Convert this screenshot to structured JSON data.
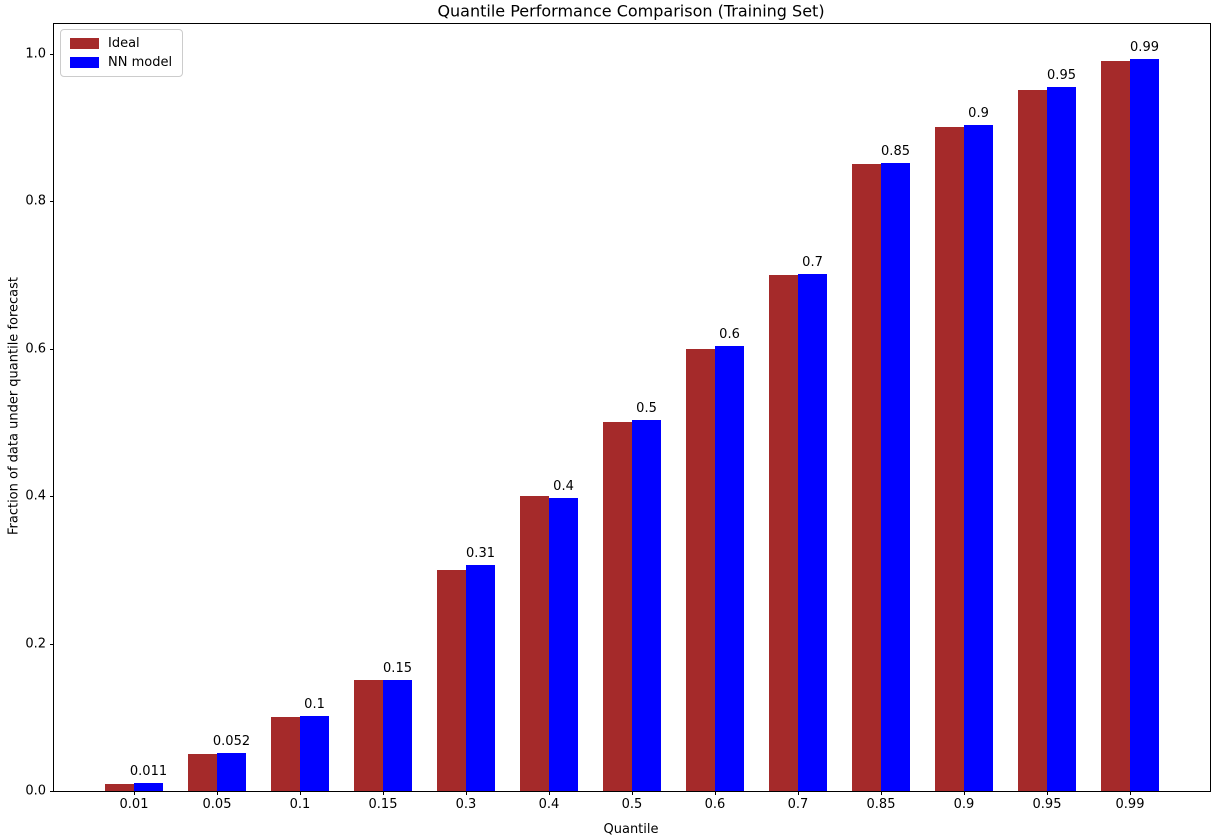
{
  "chart_data": {
    "type": "bar",
    "title": "Quantile Performance Comparison (Training Set)",
    "xlabel": "Quantile",
    "ylabel": "Fraction of data under quantile forecast",
    "categories": [
      "0.01",
      "0.05",
      "0.1",
      "0.15",
      "0.3",
      "0.4",
      "0.5",
      "0.6",
      "0.7",
      "0.85",
      "0.9",
      "0.95",
      "0.99"
    ],
    "series": [
      {
        "name": "Ideal",
        "color": "#A52A2A",
        "values": [
          0.01,
          0.05,
          0.1,
          0.15,
          0.3,
          0.4,
          0.5,
          0.6,
          0.7,
          0.85,
          0.9,
          0.95,
          0.99
        ]
      },
      {
        "name": "NN model",
        "color": "#0000FF",
        "values": [
          0.011,
          0.052,
          0.102,
          0.151,
          0.306,
          0.397,
          0.503,
          0.604,
          0.701,
          0.851,
          0.903,
          0.955,
          0.993
        ]
      }
    ],
    "bar_labels": [
      "0.011",
      "0.052",
      "0.1",
      "0.15",
      "0.31",
      "0.4",
      "0.5",
      "0.6",
      "0.7",
      "0.85",
      "0.9",
      "0.95",
      "0.99"
    ],
    "yticks": [
      "0.0",
      "0.2",
      "0.4",
      "0.6",
      "0.8",
      "1.0"
    ],
    "ylim": [
      0,
      1.04
    ],
    "grid": false,
    "legend_position": "upper left"
  }
}
